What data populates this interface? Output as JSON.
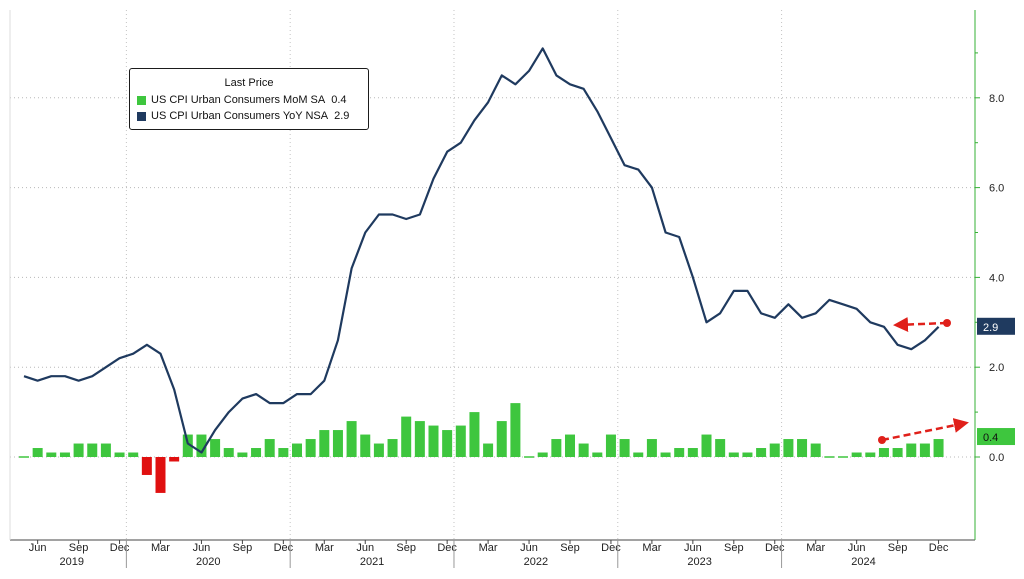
{
  "chart_data": {
    "type": "bar+line",
    "legend": {
      "title": "Last Price",
      "placement": "top-left",
      "entries": [
        {
          "name": "US CPI Urban Consumers MoM SA",
          "value": "0.4",
          "color": "#3ec63e"
        },
        {
          "name": "US CPI Urban Consumers YoY NSA",
          "value": "2.9",
          "color": "#1f3a5f"
        }
      ]
    },
    "x_months": [
      "2019-05",
      "2019-06",
      "2019-07",
      "2019-08",
      "2019-09",
      "2019-10",
      "2019-11",
      "2019-12",
      "2020-01",
      "2020-02",
      "2020-03",
      "2020-04",
      "2020-05",
      "2020-06",
      "2020-07",
      "2020-08",
      "2020-09",
      "2020-10",
      "2020-11",
      "2020-12",
      "2021-01",
      "2021-02",
      "2021-03",
      "2021-04",
      "2021-05",
      "2021-06",
      "2021-07",
      "2021-08",
      "2021-09",
      "2021-10",
      "2021-11",
      "2021-12",
      "2022-01",
      "2022-02",
      "2022-03",
      "2022-04",
      "2022-05",
      "2022-06",
      "2022-07",
      "2022-08",
      "2022-09",
      "2022-10",
      "2022-11",
      "2022-12",
      "2023-01",
      "2023-02",
      "2023-03",
      "2023-04",
      "2023-05",
      "2023-06",
      "2023-07",
      "2023-08",
      "2023-09",
      "2023-10",
      "2023-11",
      "2023-12",
      "2024-01",
      "2024-02",
      "2024-03",
      "2024-04",
      "2024-05",
      "2024-06",
      "2024-07",
      "2024-08",
      "2024-09",
      "2024-10",
      "2024-11",
      "2024-12"
    ],
    "series": [
      {
        "name": "US CPI Urban Consumers MoM SA",
        "kind": "bar",
        "color": "#3ec63e",
        "neg_color": "#e01010",
        "values": [
          0.0,
          0.2,
          0.1,
          0.1,
          0.3,
          0.3,
          0.3,
          0.1,
          0.1,
          -0.4,
          -0.8,
          -0.1,
          0.5,
          0.5,
          0.4,
          0.2,
          0.1,
          0.2,
          0.4,
          0.2,
          0.3,
          0.4,
          0.6,
          0.6,
          0.8,
          0.5,
          0.3,
          0.4,
          0.9,
          0.8,
          0.7,
          0.6,
          0.7,
          1.0,
          0.3,
          0.8,
          1.2,
          0.0,
          0.1,
          0.4,
          0.5,
          0.3,
          0.1,
          0.5,
          0.4,
          0.1,
          0.4,
          0.1,
          0.2,
          0.2,
          0.5,
          0.4,
          0.1,
          0.1,
          0.2,
          0.3,
          0.4,
          0.4,
          0.3,
          0.0,
          0.0,
          0.1,
          0.1,
          0.2,
          0.2,
          0.3,
          0.3,
          0.4
        ]
      },
      {
        "name": "US CPI Urban Consumers YoY NSA",
        "kind": "line",
        "color": "#1f3a5f",
        "values": [
          1.8,
          1.7,
          1.8,
          1.8,
          1.7,
          1.8,
          2.0,
          2.2,
          2.3,
          2.5,
          2.3,
          1.5,
          0.3,
          0.1,
          0.6,
          1.0,
          1.3,
          1.4,
          1.2,
          1.2,
          1.4,
          1.4,
          1.7,
          2.6,
          4.2,
          5.0,
          5.4,
          5.4,
          5.3,
          5.4,
          6.2,
          6.8,
          7.0,
          7.5,
          7.9,
          8.5,
          8.3,
          8.6,
          9.1,
          8.5,
          8.3,
          8.2,
          7.7,
          7.1,
          6.5,
          6.4,
          6.0,
          5.0,
          4.9,
          4.0,
          3.0,
          3.2,
          3.7,
          3.7,
          3.2,
          3.1,
          3.4,
          3.1,
          3.2,
          3.5,
          3.4,
          3.3,
          3.0,
          2.9,
          2.5,
          2.4,
          2.6,
          2.9
        ]
      }
    ],
    "y_range": [
      -1.6,
      9.9
    ],
    "y_ticks": [
      "0.0",
      "2.0",
      "4.0",
      "6.0",
      "8.0"
    ],
    "x_month_ticks": [
      "Jun",
      "Sep",
      "Dec",
      "Mar",
      "Jun",
      "Sep",
      "Dec",
      "Mar",
      "Jun",
      "Sep",
      "Dec",
      "Mar",
      "Jun",
      "Sep",
      "Dec",
      "Mar",
      "Jun",
      "Sep",
      "Dec",
      "Mar",
      "Jun",
      "Sep",
      "Dec"
    ],
    "x_year_labels": [
      "2019",
      "2020",
      "2021",
      "2022",
      "2023",
      "2024"
    ],
    "last_value_labels": {
      "line": "2.9",
      "bar": "0.4"
    },
    "grid": "dotted",
    "axis_color": "#35b035"
  }
}
